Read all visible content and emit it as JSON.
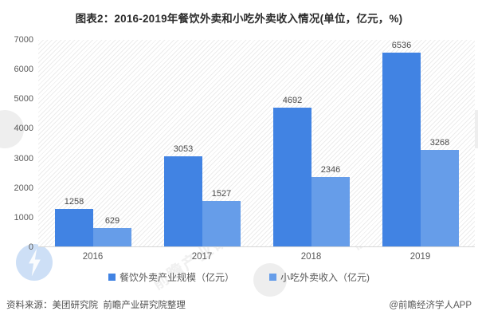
{
  "title": "图表2：2016-2019年餐饮外卖和小吃外卖收入情况(单位，亿元，%)",
  "chart_data": {
    "type": "bar",
    "title": "图表2：2016-2019年餐饮外卖和小吃外卖收入情况(单位，亿元，%)",
    "categories": [
      "2016",
      "2017",
      "2018",
      "2019"
    ],
    "series": [
      {
        "name": "餐饮外卖产业规模（亿元）",
        "color": "#4183e3",
        "values": [
          1258,
          3053,
          4692,
          6536
        ]
      },
      {
        "name": "小吃外卖收入（亿元)",
        "color": "#669de9",
        "values": [
          629,
          1527,
          2346,
          3268
        ]
      }
    ],
    "ylim": [
      0,
      7000
    ],
    "yticks": [
      0,
      1000,
      2000,
      3000,
      4000,
      5000,
      6000,
      7000
    ],
    "grid": false,
    "value_labels": true,
    "legend_position": "bottom",
    "plot_background": "diagonal-hatch"
  },
  "footer": {
    "source": "资料来源：美团研究院  前瞻产业研究院整理",
    "credit": "@前瞻经济学人APP"
  },
  "watermark": {
    "text": "前瞻产业研究院",
    "logo_name": "qianzhan-logo"
  },
  "colors": {
    "series1": "#4183e3",
    "series2": "#669de9",
    "title_text": "#2b2b2b",
    "axis_text": "#595959",
    "value_text": "#4a4a4a",
    "baseline": "#d6d6d6"
  }
}
